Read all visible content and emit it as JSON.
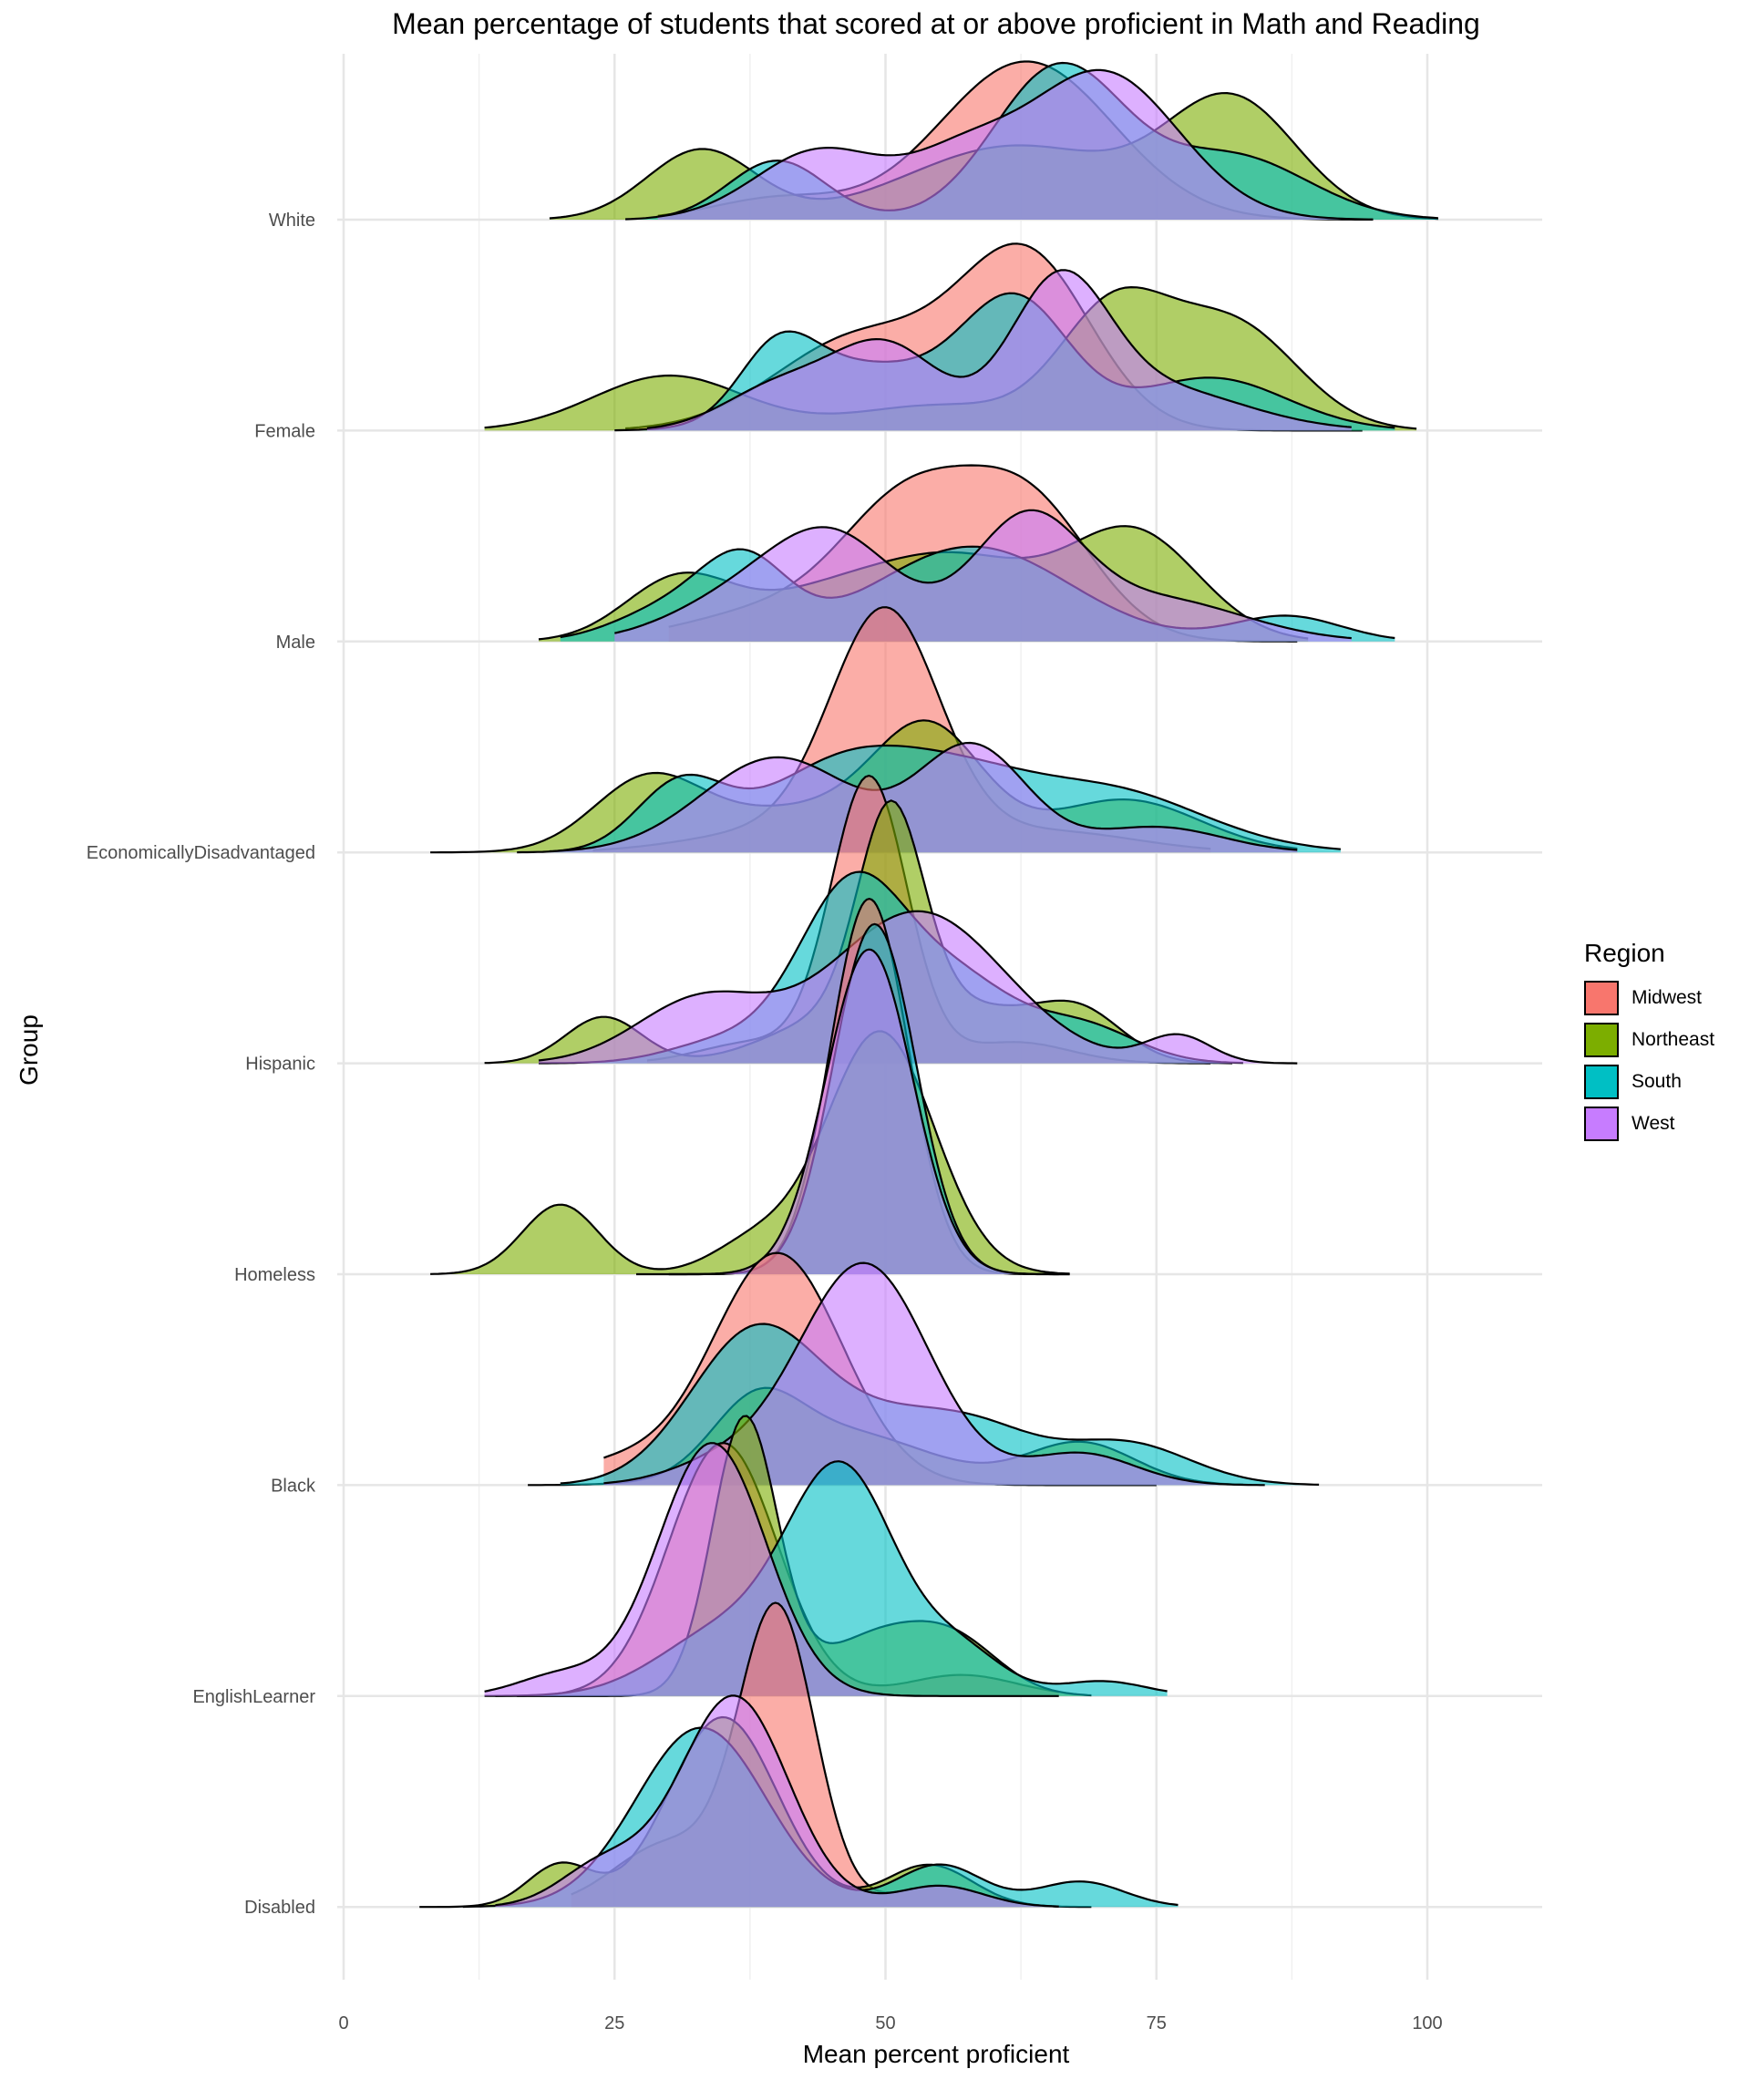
{
  "chart_data": {
    "type": "ridgeline-density",
    "title": "Mean percentage of students that scored at or above proficient in Math and Reading",
    "xlabel": "Mean percent proficient",
    "ylabel": "Group",
    "xlim": [
      0,
      100
    ],
    "xticks": [
      0,
      25,
      50,
      75,
      100
    ],
    "xtick_labels": [
      "0",
      "25",
      "50",
      "75",
      "100"
    ],
    "legend": {
      "title": "Region",
      "position": "right"
    },
    "regions": [
      {
        "name": "Midwest",
        "color": "#F8766D"
      },
      {
        "name": "Northeast",
        "color": "#7CAE00"
      },
      {
        "name": "South",
        "color": "#00BFC4"
      },
      {
        "name": "West",
        "color": "#C77CFF"
      }
    ],
    "groups": [
      {
        "name": "White",
        "curves": {
          "Midwest": {
            "range": [
              29,
              95
            ],
            "components": [
              [
                63,
                8,
                0.75
              ],
              [
                40,
                6,
                0.1
              ]
            ]
          },
          "Northeast": {
            "range": [
              19,
              101
            ],
            "components": [
              [
                33,
                5,
                0.33
              ],
              [
                82,
                6,
                0.55
              ],
              [
                62,
                10,
                0.35
              ]
            ]
          },
          "South": {
            "range": [
              26,
              101
            ],
            "components": [
              [
                40,
                4.5,
                0.28
              ],
              [
                66,
                6,
                0.72
              ],
              [
                82,
                7,
                0.3
              ]
            ]
          },
          "West": {
            "range": [
              29,
              95
            ],
            "components": [
              [
                44,
                6,
                0.33
              ],
              [
                70,
                7,
                0.7
              ],
              [
                57,
                5,
                0.25
              ]
            ]
          }
        }
      },
      {
        "name": "Female",
        "curves": {
          "Midwest": {
            "range": [
              26,
              94
            ],
            "components": [
              [
                63,
                6,
                0.8
              ],
              [
                48,
                8,
                0.45
              ]
            ]
          },
          "Northeast": {
            "range": [
              13,
              99
            ],
            "components": [
              [
                30,
                7,
                0.26
              ],
              [
                71,
                5,
                0.55
              ],
              [
                82,
                6,
                0.5
              ],
              [
                55,
                8,
                0.12
              ]
            ]
          },
          "South": {
            "range": [
              25,
              97
            ],
            "components": [
              [
                40,
                3.5,
                0.3
              ],
              [
                62,
                5,
                0.6
              ],
              [
                48,
                7,
                0.3
              ],
              [
                80,
                7,
                0.25
              ]
            ]
          },
          "West": {
            "range": [
              28,
              93
            ],
            "components": [
              [
                50,
                5,
                0.4
              ],
              [
                40,
                5,
                0.2
              ],
              [
                66,
                4.5,
                0.65
              ],
              [
                75,
                8,
                0.2
              ]
            ]
          }
        }
      },
      {
        "name": "Male",
        "curves": {
          "Midwest": {
            "range": [
              30,
              88
            ],
            "components": [
              [
                52,
                6,
                0.6
              ],
              [
                63,
                6,
                0.65
              ],
              [
                40,
                8,
                0.15
              ]
            ]
          },
          "Northeast": {
            "range": [
              18,
              89
            ],
            "components": [
              [
                31,
                5,
                0.3
              ],
              [
                56,
                8,
                0.4
              ],
              [
                73,
                6,
                0.5
              ],
              [
                43,
                6,
                0.15
              ]
            ]
          },
          "South": {
            "range": [
              20,
              97
            ],
            "components": [
              [
                37,
                4,
                0.35
              ],
              [
                58,
                9,
                0.45
              ],
              [
                87,
                5,
                0.12
              ],
              [
                30,
                5,
                0.15
              ]
            ]
          },
          "West": {
            "range": [
              25,
              93
            ],
            "components": [
              [
                45,
                6,
                0.5
              ],
              [
                63,
                5,
                0.55
              ],
              [
                35,
                6,
                0.15
              ],
              [
                75,
                8,
                0.2
              ]
            ]
          }
        }
      },
      {
        "name": "EconomicallyDisadvantaged",
        "curves": {
          "Midwest": {
            "range": [
              23,
              80
            ],
            "components": [
              [
                50,
                5,
                1.1
              ],
              [
                40,
                8,
                0.1
              ],
              [
                65,
                8,
                0.1
              ]
            ]
          },
          "Northeast": {
            "range": [
              8,
              88
            ],
            "components": [
              [
                28,
                5,
                0.33
              ],
              [
                54,
                5,
                0.55
              ],
              [
                42,
                8,
                0.2
              ],
              [
                72,
                7,
                0.25
              ]
            ]
          },
          "South": {
            "range": [
              16,
              92
            ],
            "components": [
              [
                31,
                4,
                0.3
              ],
              [
                47,
                8,
                0.45
              ],
              [
                70,
                9,
                0.3
              ],
              [
                58,
                6,
                0.15
              ]
            ]
          },
          "West": {
            "range": [
              19,
              88
            ],
            "components": [
              [
                40,
                7,
                0.45
              ],
              [
                58,
                5,
                0.5
              ],
              [
                75,
                6,
                0.12
              ]
            ]
          }
        }
      },
      {
        "name": "Hispanic",
        "curves": {
          "Midwest": {
            "range": [
              28,
              80
            ],
            "components": [
              [
                48.5,
                3.5,
                1.35
              ],
              [
                38,
                5,
                0.1
              ],
              [
                62,
                5,
                0.1
              ]
            ]
          },
          "Northeast": {
            "range": [
              13,
              82
            ],
            "components": [
              [
                24,
                3.5,
                0.22
              ],
              [
                50.5,
                3,
                1.0
              ],
              [
                45,
                6,
                0.2
              ],
              [
                68,
                4,
                0.22
              ],
              [
                58,
                6,
                0.25
              ]
            ]
          },
          "South": {
            "range": [
              18,
              83
            ],
            "components": [
              [
                47,
                5,
                0.85
              ],
              [
                57,
                5,
                0.35
              ],
              [
                68,
                5,
                0.18
              ],
              [
                35,
                5,
                0.1
              ]
            ]
          },
          "West": {
            "range": [
              18,
              88
            ],
            "components": [
              [
                53,
                8,
                0.72
              ],
              [
                33,
                6,
                0.3
              ],
              [
                77,
                3,
                0.13
              ]
            ]
          }
        }
      },
      {
        "name": "Homeless",
        "curves": {
          "Midwest": {
            "range": [
              30,
              67
            ],
            "components": [
              [
                48.5,
                3.6,
                1.78
              ]
            ]
          },
          "Northeast": {
            "range": [
              8,
              67
            ],
            "components": [
              [
                20,
                3.5,
                0.33
              ],
              [
                49.5,
                5,
                1.15
              ],
              [
                38,
                4,
                0.15
              ]
            ]
          },
          "South": {
            "range": [
              27,
              67
            ],
            "components": [
              [
                49,
                3.8,
                1.66
              ]
            ]
          },
          "West": {
            "range": [
              30,
              66
            ],
            "components": [
              [
                48.5,
                4,
                1.54
              ]
            ]
          }
        }
      },
      {
        "name": "Black",
        "curves": {
          "Midwest": {
            "range": [
              24,
              75
            ],
            "components": [
              [
                40,
                6,
                1.1
              ],
              [
                25,
                5,
                0.1
              ]
            ]
          },
          "Northeast": {
            "range": [
              17,
              83
            ],
            "components": [
              [
                38,
                4,
                0.3
              ],
              [
                46,
                8,
                0.25
              ],
              [
                68,
                5,
                0.2
              ]
            ]
          },
          "South": {
            "range": [
              20,
              90
            ],
            "components": [
              [
                38,
                6,
                0.72
              ],
              [
                52,
                7,
                0.3
              ],
              [
                72,
                6,
                0.2
              ],
              [
                60,
                5,
                0.12
              ]
            ]
          },
          "West": {
            "range": [
              24,
              85
            ],
            "components": [
              [
                48,
                6,
                1.05
              ],
              [
                68,
                5,
                0.15
              ],
              [
                35,
                5,
                0.1
              ]
            ]
          }
        }
      },
      {
        "name": "EnglishLearner",
        "curves": {
          "Midwest": {
            "range": [
              14,
              66
            ],
            "components": [
              [
                35,
                5,
                1.2
              ],
              [
                57,
                5,
                0.1
              ]
            ]
          },
          "Northeast": {
            "range": [
              16,
              69
            ],
            "components": [
              [
                37,
                3,
                1.3
              ],
              [
                50,
                6,
                0.3
              ],
              [
                57,
                4,
                0.15
              ]
            ]
          },
          "South": {
            "range": [
              13,
              76
            ],
            "components": [
              [
                46,
                5,
                1.05
              ],
              [
                35,
                6,
                0.3
              ],
              [
                57,
                4,
                0.2
              ],
              [
                70,
                4,
                0.07
              ]
            ]
          },
          "West": {
            "range": [
              13,
              66
            ],
            "components": [
              [
                34,
                5,
                1.2
              ],
              [
                20,
                4,
                0.1
              ]
            ]
          }
        }
      },
      {
        "name": "Disabled",
        "curves": {
          "Midwest": {
            "range": [
              21,
              66
            ],
            "components": [
              [
                40,
                3.5,
                1.4
              ],
              [
                30,
                5,
                0.3
              ],
              [
                55,
                4,
                0.1
              ]
            ]
          },
          "Northeast": {
            "range": [
              7,
              69
            ],
            "components": [
              [
                35,
                5,
                0.9
              ],
              [
                20,
                3,
                0.2
              ],
              [
                54,
                4,
                0.2
              ]
            ]
          },
          "South": {
            "range": [
              11,
              77
            ],
            "components": [
              [
                33,
                6,
                0.85
              ],
              [
                55,
                4,
                0.2
              ],
              [
                68,
                4,
                0.12
              ]
            ]
          },
          "West": {
            "range": [
              14,
              66
            ],
            "components": [
              [
                36,
                5,
                1.0
              ],
              [
                24,
                4,
                0.2
              ],
              [
                55,
                4,
                0.1
              ]
            ]
          }
        }
      }
    ]
  }
}
